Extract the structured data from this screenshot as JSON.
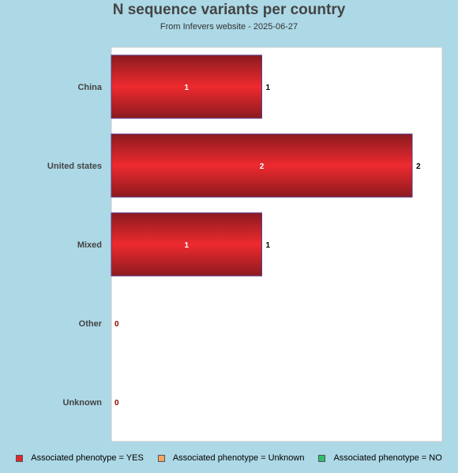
{
  "chart_data": {
    "type": "bar",
    "orientation": "horizontal",
    "title": "N sequence variants per country",
    "subtitle": "From Infevers website - 2025-06-27",
    "categories": [
      "China",
      "United states",
      "Mixed",
      "Other",
      "Unknown"
    ],
    "series": [
      {
        "name": "Associated phenotype = YES",
        "color": "#e0262b",
        "values": [
          1,
          2,
          1,
          0,
          0
        ]
      },
      {
        "name": "Associated phenotype = Unknown",
        "color": "#f4a460",
        "values": [
          0,
          0,
          0,
          0,
          0
        ]
      },
      {
        "name": "Associated phenotype = NO",
        "color": "#2ebf6b",
        "values": [
          0,
          0,
          0,
          0,
          0
        ]
      }
    ],
    "totals": [
      1,
      2,
      1,
      0,
      0
    ],
    "xlim": [
      0,
      2.2
    ],
    "grid": false,
    "legend_position": "bottom",
    "colors": {
      "background": "#add8e6",
      "plot_background": "#ffffff",
      "bar_dark": "#8b1a1e",
      "bar_light": "#ee2a2f",
      "zero_label": "#8b0000"
    }
  }
}
